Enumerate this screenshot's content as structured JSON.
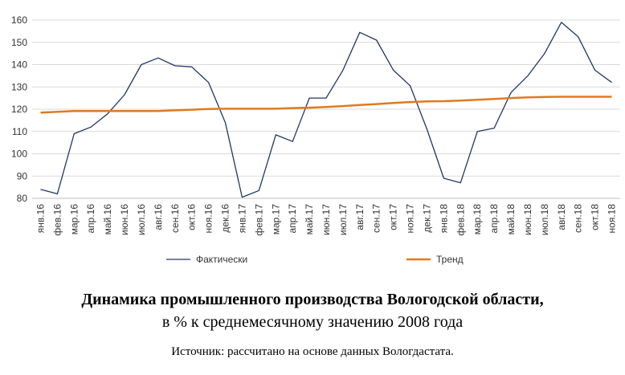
{
  "chart_data": {
    "type": "line",
    "title": "Динамика промышленного производства Вологодской области,",
    "subtitle": "в % к среднемесячному значению 2008 года",
    "source": "Источник: рассчитано на основе данных Вологдастата.",
    "categories": [
      "янв.16",
      "фев.16",
      "мар.16",
      "апр.16",
      "май.16",
      "июн.16",
      "июл.16",
      "авг.16",
      "сен.16",
      "окт.16",
      "ноя.16",
      "дек.16",
      "янв.17",
      "фев.17",
      "мар.17",
      "апр.17",
      "май.17",
      "июн.17",
      "июл.17",
      "авг.17",
      "сен.17",
      "окт.17",
      "ноя.17",
      "дек.17",
      "янв.18",
      "фев.18",
      "мар.18",
      "апр.18",
      "май.18",
      "июн.18",
      "июл.18",
      "авг.18",
      "сен.18",
      "окт.18",
      "ноя.18"
    ],
    "ylim": [
      80,
      160
    ],
    "yticks": [
      80,
      90,
      100,
      110,
      120,
      130,
      140,
      150,
      160
    ],
    "grid": "horizontal",
    "legend_position": "bottom",
    "series": [
      {
        "name": "Фактически",
        "color": "#203864",
        "values": [
          84,
          82,
          109,
          112,
          118,
          126.5,
          140,
          143,
          139.5,
          139,
          132,
          114,
          80.5,
          83.5,
          108.5,
          105.5,
          125,
          125,
          137.5,
          154.5,
          151,
          137.5,
          130.5,
          111,
          89,
          87,
          110,
          111.5,
          127.5,
          135,
          145,
          159,
          152.5,
          137.5,
          132
        ]
      },
      {
        "name": "Тренд",
        "color": "#E07A1F",
        "values": [
          118.5,
          118.8,
          119.2,
          119.2,
          119.2,
          119.2,
          119.2,
          119.2,
          119.5,
          119.8,
          120.1,
          120.2,
          120.2,
          120.2,
          120.2,
          120.5,
          120.7,
          121,
          121.4,
          121.9,
          122.3,
          122.8,
          123.2,
          123.5,
          123.6,
          123.9,
          124.2,
          124.6,
          125,
          125.3,
          125.5,
          125.6,
          125.6,
          125.6,
          125.6
        ]
      }
    ]
  }
}
